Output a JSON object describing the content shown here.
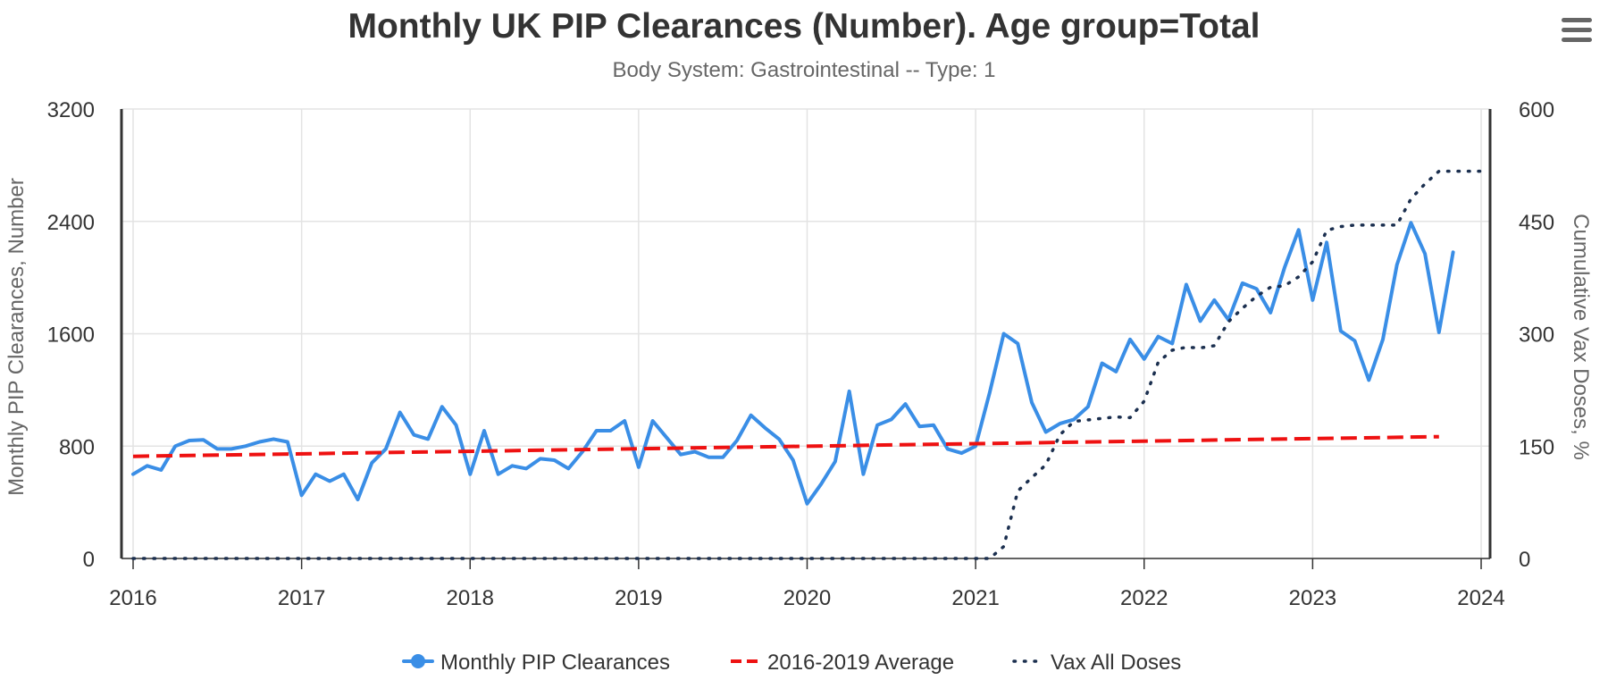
{
  "chart_data": {
    "type": "line",
    "title": "Monthly UK PIP Clearances (Number). Age group=Total",
    "subtitle": "Body System: Gastrointestinal -- Type: 1",
    "x_ticks": [
      "2016",
      "2017",
      "2018",
      "2019",
      "2020",
      "2021",
      "2022",
      "2023",
      "2024"
    ],
    "xlim": [
      "2016-01",
      "2024-01"
    ],
    "y_left": {
      "label": "Monthly PIP Clearances, Number",
      "ticks": [
        "0",
        "800",
        "1600",
        "2400",
        "3200"
      ],
      "range": [
        0,
        3200
      ]
    },
    "y_right": {
      "label": "Cumulative Vax Doses, %",
      "ticks": [
        "0",
        "150",
        "300",
        "450",
        "600"
      ],
      "range": [
        0,
        600
      ]
    },
    "grid": true,
    "legend_position": "bottom-center",
    "series": [
      {
        "name": "Monthly PIP Clearances",
        "axis": "left",
        "color": "#3a8ee6",
        "style": "solid-with-markers",
        "start": "2016-01",
        "values": [
          600,
          660,
          630,
          800,
          840,
          845,
          780,
          780,
          800,
          830,
          850,
          830,
          450,
          600,
          550,
          600,
          420,
          680,
          780,
          1040,
          880,
          850,
          1080,
          950,
          600,
          910,
          600,
          660,
          640,
          710,
          700,
          640,
          760,
          910,
          910,
          980,
          650,
          980,
          860,
          740,
          760,
          720,
          720,
          840,
          1020,
          930,
          850,
          700,
          390,
          530,
          690,
          1190,
          600,
          950,
          990,
          1100,
          940,
          950,
          780,
          750,
          800,
          1180,
          1600,
          1530,
          1110,
          900,
          960,
          990,
          1080,
          1390,
          1330,
          1560,
          1420,
          1580,
          1530,
          1950,
          1690,
          1840,
          1700,
          1960,
          1920,
          1750,
          2070,
          2340,
          1840,
          2250,
          1620,
          1550,
          1270,
          1560,
          2090,
          2390,
          2170,
          1610,
          2180
        ]
      },
      {
        "name": "2016-2019 Average",
        "axis": "left",
        "color": "#ee1111",
        "style": "dashed",
        "x": [
          "2016-01",
          "2023-10"
        ],
        "y": [
          727,
          867
        ]
      },
      {
        "name": "Vax All Doses",
        "axis": "right",
        "color": "#1b2f4f",
        "style": "dotted",
        "start": "2016-01",
        "values": [
          0,
          0,
          0,
          0,
          0,
          0,
          0,
          0,
          0,
          0,
          0,
          0,
          0,
          0,
          0,
          0,
          0,
          0,
          0,
          0,
          0,
          0,
          0,
          0,
          0,
          0,
          0,
          0,
          0,
          0,
          0,
          0,
          0,
          0,
          0,
          0,
          0,
          0,
          0,
          0,
          0,
          0,
          0,
          0,
          0,
          0,
          0,
          0,
          0,
          0,
          0,
          0,
          0,
          0,
          0,
          0,
          0,
          0,
          0,
          0,
          0,
          0,
          16,
          90,
          108,
          125,
          165,
          183,
          185,
          187,
          189,
          188,
          210,
          262,
          278,
          282,
          281,
          284,
          316,
          334,
          350,
          362,
          364,
          376,
          396,
          438,
          443,
          445,
          445,
          445,
          445,
          480,
          500,
          517,
          517,
          517,
          517
        ]
      }
    ]
  }
}
